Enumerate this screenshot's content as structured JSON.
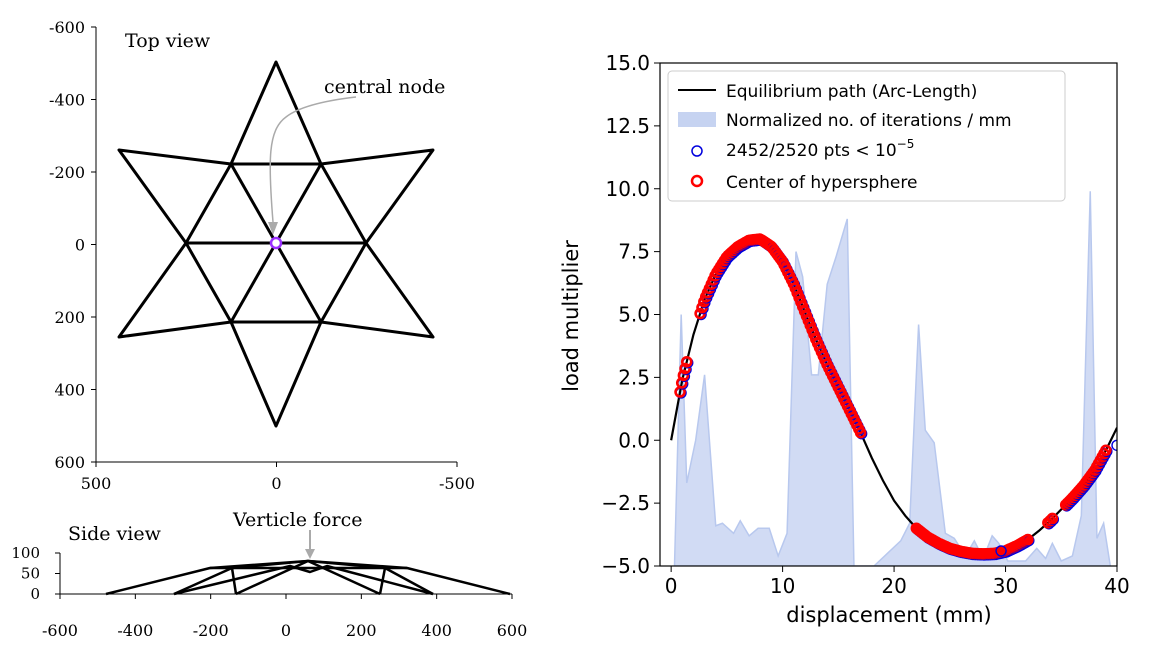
{
  "colors": {
    "truss": "#000000",
    "node": "#9b30ff",
    "annotation_arrow": "#aaaaaa",
    "path": "#000000",
    "fill": "#b8c8ee",
    "open_marker": "#0000dd",
    "center_marker": "#ff0000"
  },
  "top_view": {
    "title": "Top view",
    "annotation": "central node",
    "x_ticks": [
      "500",
      "0",
      "-500"
    ],
    "y_ticks": [
      "-600",
      "-400",
      "-200",
      "0",
      "200",
      "400",
      "600"
    ],
    "x_tick_values": [
      500,
      0,
      -500
    ],
    "y_tick_values": [
      -600,
      -400,
      -200,
      0,
      200,
      400,
      600
    ],
    "xlim": [
      500,
      -500
    ],
    "ylim": [
      -600,
      600
    ]
  },
  "side_view": {
    "title": "Side view",
    "annotation": "Verticle force",
    "x_ticks": [
      "-600",
      "-400",
      "-200",
      "0",
      "200",
      "400",
      "600"
    ],
    "y_ticks": [
      "100",
      "50",
      "0"
    ],
    "x_tick_values": [
      -600,
      -400,
      -200,
      0,
      200,
      400,
      600
    ],
    "y_tick_values": [
      100,
      50,
      0
    ],
    "xlim": [
      -600,
      600
    ],
    "ylim": [
      0,
      100
    ]
  },
  "chart_data": {
    "type": "line",
    "xlabel": "displacement (mm)",
    "ylabel": "load multiplier",
    "xlim": [
      -1,
      40
    ],
    "ylim": [
      -5,
      15
    ],
    "x_ticks": [
      "0",
      "10",
      "20",
      "30",
      "40"
    ],
    "y_ticks": [
      "15.0",
      "12.5",
      "10.0",
      "7.5",
      "5.0",
      "2.5",
      "0.0",
      "−2.5",
      "−5.0"
    ],
    "x_tick_values": [
      0,
      10,
      20,
      30,
      40
    ],
    "y_tick_values": [
      15,
      12.5,
      10,
      7.5,
      5,
      2.5,
      0,
      -2.5,
      -5
    ],
    "legend": {
      "position": "top-left",
      "entries": [
        {
          "label": "Equilibrium path (Arc-Length)",
          "kind": "line"
        },
        {
          "label": "Normalized no. of iterations / mm",
          "kind": "fill"
        },
        {
          "label": "2452/2520 pts < 10",
          "sup": "−5",
          "kind": "open-circle"
        },
        {
          "label": "Center of hypersphere",
          "kind": "red-circle"
        }
      ]
    },
    "series": [
      {
        "name": "Equilibrium path (Arc-Length)",
        "x": [
          0,
          1,
          2,
          3,
          4,
          5,
          6,
          7,
          8,
          9,
          10,
          11,
          12,
          13,
          14,
          15,
          16,
          17,
          18,
          19,
          20,
          21,
          22,
          23,
          24,
          25,
          26,
          27,
          28,
          29,
          30,
          31,
          32,
          33,
          34,
          35,
          36,
          37,
          38,
          39,
          40
        ],
        "y": [
          0,
          2.4,
          4.2,
          5.6,
          6.6,
          7.3,
          7.7,
          7.95,
          8.0,
          7.7,
          7.1,
          6.2,
          5.1,
          4.0,
          3.0,
          2.1,
          1.2,
          0.3,
          -0.7,
          -1.6,
          -2.4,
          -3.0,
          -3.5,
          -3.85,
          -4.1,
          -4.3,
          -4.42,
          -4.5,
          -4.52,
          -4.5,
          -4.4,
          -4.2,
          -3.95,
          -3.6,
          -3.2,
          -2.75,
          -2.3,
          -1.8,
          -1.2,
          -0.4,
          0.5
        ]
      },
      {
        "name": "Normalized no. of iterations / mm",
        "x": [
          0.3,
          0.9,
          1.4,
          2.2,
          3.0,
          4.0,
          4.6,
          5.6,
          6.2,
          7.0,
          7.8,
          8.8,
          9.6,
          10.4,
          11.2,
          11.8,
          12.6,
          13.2,
          14.0,
          14.8,
          15.8,
          16.4,
          17.0,
          17.6,
          18.2,
          20.6,
          21.4,
          22.2,
          22.8,
          23.6,
          24.6,
          25.4,
          26.4,
          27.2,
          28.0,
          28.8,
          29.4,
          30.2,
          31.0,
          31.8,
          32.8,
          33.6,
          34.2,
          35.0,
          36.0,
          36.8,
          37.6,
          38.2,
          38.8,
          39.4
        ],
        "y": [
          -5,
          5.0,
          -1.7,
          0.0,
          2.6,
          -3.4,
          -3.3,
          -3.7,
          -3.2,
          -3.8,
          -3.5,
          -3.5,
          -4.6,
          -3.7,
          7.5,
          6.5,
          2.6,
          2.6,
          6.2,
          7.3,
          8.8,
          -5,
          -5,
          -5,
          -5,
          -4.0,
          -3.3,
          4.6,
          0.4,
          -0.1,
          -3.7,
          -3.9,
          -4.6,
          -4.0,
          -4.7,
          -3.8,
          -4.1,
          -4.8,
          -4.8,
          -4.8,
          -4.3,
          -4.7,
          -4.1,
          -4.8,
          -4.6,
          -3.0,
          9.9,
          -3.9,
          -3.3,
          -5
        ]
      }
    ],
    "marker_segments": [
      {
        "x_range": [
          0.8,
          1.4
        ]
      },
      {
        "x_range": [
          2.6,
          17.0
        ]
      },
      {
        "x_range": [
          22.0,
          32.0
        ]
      },
      {
        "x_range": [
          33.8,
          34.2
        ]
      },
      {
        "x_range": [
          35.4,
          39.0
        ]
      }
    ],
    "unconverged_markers": [
      {
        "x": 40.0,
        "y": -0.2
      },
      {
        "x": 29.6,
        "y": -4.4
      }
    ]
  }
}
